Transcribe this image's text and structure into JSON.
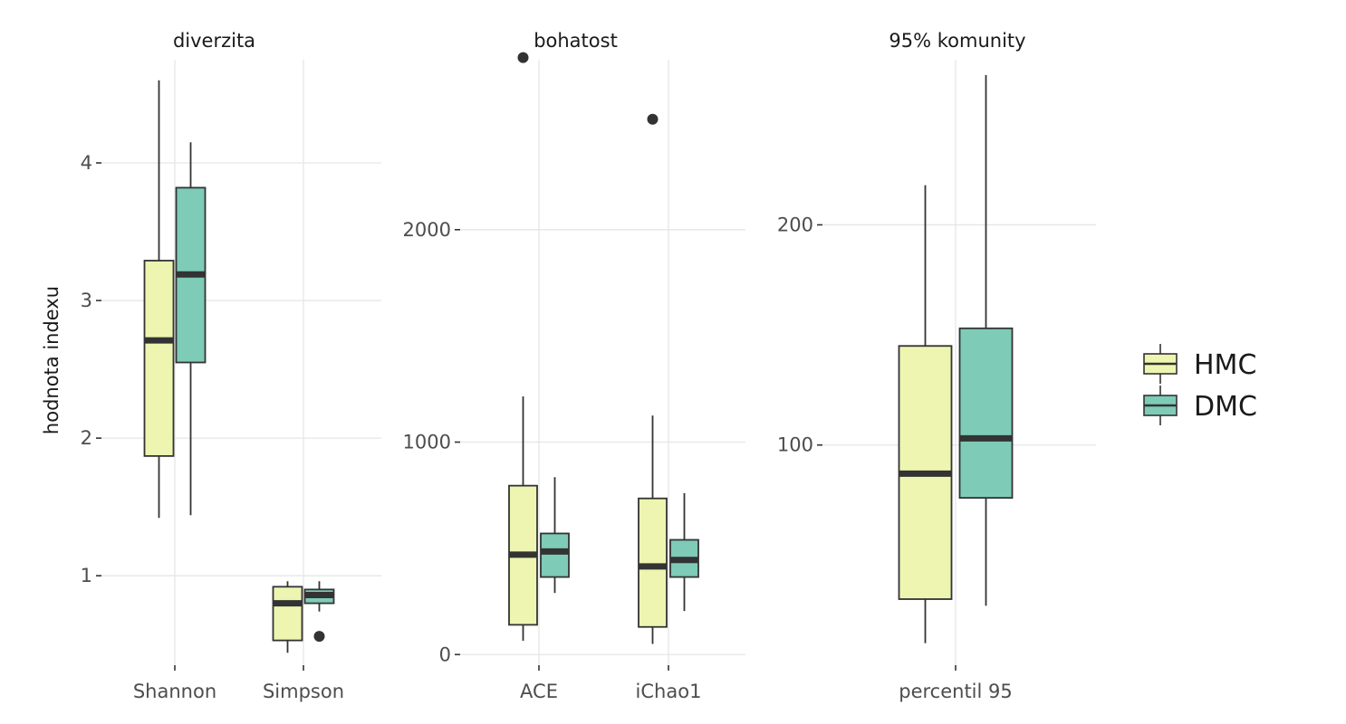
{
  "chart_data": {
    "type": "boxplot",
    "ylabel": "hodnota indexu",
    "legend": {
      "placement": "right",
      "entries": [
        {
          "name": "HMC",
          "color": "#edf5b0"
        },
        {
          "name": "DMC",
          "color": "#7ecbb8"
        }
      ]
    },
    "panels": [
      {
        "title": "diverzita",
        "ylim": [
          0.35,
          4.75
        ],
        "yticks": [
          1,
          2,
          3,
          4
        ],
        "categories": [
          "Shannon",
          "Simpson"
        ],
        "boxes": [
          {
            "category": "Shannon",
            "group": "HMC",
            "whislo": 1.42,
            "q1": 1.87,
            "med": 2.71,
            "q3": 3.29,
            "whishi": 4.6,
            "outliers": []
          },
          {
            "category": "Shannon",
            "group": "DMC",
            "whislo": 1.44,
            "q1": 2.55,
            "med": 3.19,
            "q3": 3.82,
            "whishi": 4.15,
            "outliers": []
          },
          {
            "category": "Simpson",
            "group": "HMC",
            "whislo": 0.44,
            "q1": 0.53,
            "med": 0.8,
            "q3": 0.92,
            "whishi": 0.96,
            "outliers": []
          },
          {
            "category": "Simpson",
            "group": "DMC",
            "whislo": 0.74,
            "q1": 0.8,
            "med": 0.86,
            "q3": 0.9,
            "whishi": 0.96,
            "outliers": [
              0.56
            ]
          }
        ]
      },
      {
        "title": "bohatost",
        "ylim": [
          -50,
          2800
        ],
        "yticks": [
          0,
          1000,
          2000
        ],
        "categories": [
          "ACE",
          "iChao1"
        ],
        "boxes": [
          {
            "category": "ACE",
            "group": "HMC",
            "whislo": 65,
            "q1": 140,
            "med": 470,
            "q3": 795,
            "whishi": 1215,
            "outliers": [
              2810
            ]
          },
          {
            "category": "ACE",
            "group": "DMC",
            "whislo": 290,
            "q1": 365,
            "med": 485,
            "q3": 570,
            "whishi": 835,
            "outliers": []
          },
          {
            "category": "iChao1",
            "group": "HMC",
            "whislo": 50,
            "q1": 130,
            "med": 415,
            "q3": 735,
            "whishi": 1125,
            "outliers": [
              2520
            ]
          },
          {
            "category": "iChao1",
            "group": "DMC",
            "whislo": 205,
            "q1": 365,
            "med": 445,
            "q3": 540,
            "whishi": 760,
            "outliers": []
          }
        ]
      },
      {
        "title": "95% komunity",
        "ylim": [
          0,
          275
        ],
        "yticks": [
          100,
          200
        ],
        "categories": [
          "percentil 95"
        ],
        "boxes": [
          {
            "category": "percentil 95",
            "group": "HMC",
            "whislo": 10,
            "q1": 30,
            "med": 87,
            "q3": 145,
            "whishi": 218,
            "outliers": []
          },
          {
            "category": "percentil 95",
            "group": "DMC",
            "whislo": 27,
            "q1": 76,
            "med": 103,
            "q3": 153,
            "whishi": 268,
            "outliers": []
          }
        ]
      }
    ]
  }
}
